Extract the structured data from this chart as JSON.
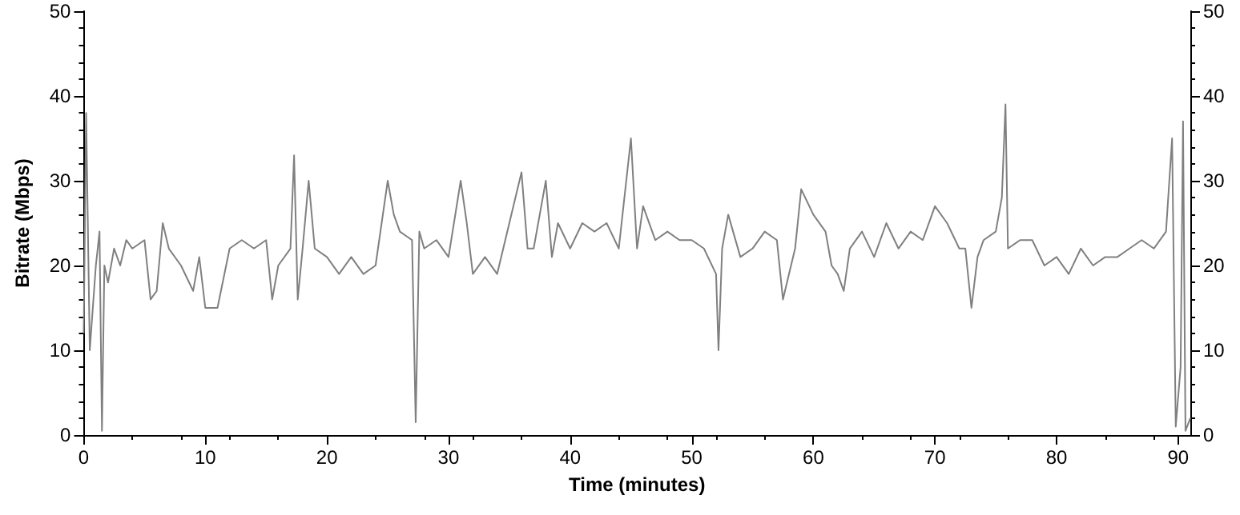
{
  "chart_data": {
    "type": "line",
    "xlabel": "Time (minutes)",
    "ylabel": "Bitrate (Mbps)",
    "x": [
      0,
      0.2,
      0.5,
      1,
      1.3,
      1.5,
      1.7,
      2,
      2.5,
      3,
      3.5,
      4,
      5,
      5.5,
      6,
      6.5,
      7,
      8,
      9,
      9.5,
      10,
      11,
      12,
      13,
      14,
      15,
      15.5,
      16,
      17,
      17.3,
      17.6,
      18,
      18.5,
      19,
      20,
      21,
      22,
      23,
      24,
      25,
      25.5,
      26,
      27,
      27.3,
      27.6,
      28,
      29,
      30,
      31,
      31.5,
      32,
      33,
      34,
      35,
      36,
      36.5,
      37,
      38,
      38.5,
      39,
      40,
      41,
      42,
      43,
      44,
      45,
      45.5,
      46,
      47,
      48,
      49,
      50,
      51,
      52,
      52.2,
      52.5,
      53,
      54,
      55,
      56,
      57,
      57.5,
      58,
      58.5,
      59,
      60,
      61,
      61.5,
      62,
      62.5,
      63,
      64,
      65,
      66,
      67,
      68,
      69,
      70,
      71,
      72,
      72.5,
      73,
      73.5,
      74,
      75,
      75.5,
      75.8,
      76,
      77,
      78,
      79,
      80,
      81,
      82,
      83,
      84,
      85,
      86,
      87,
      88,
      89,
      89.5,
      89.8,
      90.2,
      90.4,
      90.6,
      91
    ],
    "series": [
      {
        "color": "#808080",
        "values": [
          12,
          38,
          10,
          20,
          24,
          0.5,
          20,
          18,
          22,
          20,
          23,
          22,
          23,
          16,
          17,
          25,
          22,
          20,
          17,
          21,
          15,
          15,
          22,
          23,
          22,
          23,
          16,
          20,
          22,
          33,
          16,
          22,
          30,
          22,
          21,
          19,
          21,
          19,
          20,
          30,
          26,
          24,
          23,
          1.5,
          24,
          22,
          23,
          21,
          30,
          25,
          19,
          21,
          19,
          25,
          31,
          22,
          22,
          30,
          21,
          25,
          22,
          25,
          24,
          25,
          22,
          35,
          22,
          27,
          23,
          24,
          23,
          23,
          22,
          19,
          10,
          22,
          26,
          21,
          22,
          24,
          23,
          16,
          19,
          22,
          29,
          26,
          24,
          20,
          19,
          17,
          22,
          24,
          21,
          25,
          22,
          24,
          23,
          27,
          25,
          22,
          22,
          15,
          21,
          23,
          24,
          28,
          39,
          22,
          23,
          23,
          20,
          21,
          19,
          22,
          20,
          21,
          21,
          22,
          23,
          22,
          24,
          35,
          1,
          8,
          37,
          0.5,
          2
        ]
      }
    ],
    "xlim": [
      0,
      91
    ],
    "xticks": [
      0,
      10,
      20,
      30,
      40,
      50,
      60,
      70,
      80,
      90
    ],
    "ylim": [
      0,
      50
    ],
    "yticks": [
      0,
      10,
      20,
      30,
      40,
      50
    ],
    "y2lim": [
      0,
      50
    ],
    "y2ticks": [
      0,
      10,
      20,
      30,
      40,
      50
    ],
    "grid": false,
    "marker": "none",
    "line_style": "solid"
  }
}
